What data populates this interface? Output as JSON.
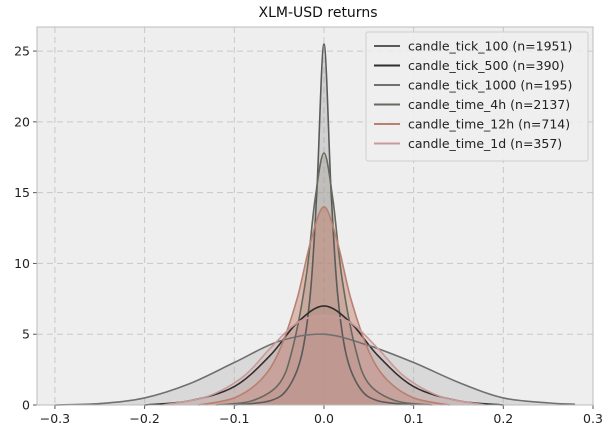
{
  "chart_data": {
    "type": "area",
    "title": "XLM-USD returns",
    "xlabel": "",
    "ylabel": "",
    "xlim": [
      -0.32,
      0.3
    ],
    "ylim": [
      0,
      26.7
    ],
    "xticks": [
      -0.3,
      -0.2,
      -0.1,
      0.0,
      0.1,
      0.2,
      0.3
    ],
    "xtick_labels": [
      "−0.3",
      "−0.2",
      "−0.1",
      "0.0",
      "0.1",
      "0.2",
      "0.3"
    ],
    "yticks": [
      0,
      5,
      10,
      15,
      20,
      25
    ],
    "ytick_labels": [
      "0",
      "5",
      "10",
      "15",
      "20",
      "25"
    ],
    "grid": true,
    "legend_position": "top-right",
    "colors": {
      "plot_bg": "#eeeeee",
      "grid": "#c8c8c8",
      "frame": "#bcbcbc"
    },
    "series": [
      {
        "name": "candle_tick_100 (n=1951)",
        "color": "#5a5a5a",
        "fill": "#9a9a9a",
        "fill_opacity": 0.35,
        "x": [
          -0.1,
          -0.06,
          -0.04,
          -0.025,
          -0.015,
          -0.008,
          0.0,
          0.008,
          0.015,
          0.025,
          0.04,
          0.06,
          0.1
        ],
        "y": [
          0.0,
          0.3,
          1.2,
          3.5,
          8.0,
          15.0,
          25.5,
          15.0,
          8.0,
          3.5,
          1.2,
          0.3,
          0.0
        ]
      },
      {
        "name": "candle_tick_500 (n=390)",
        "color": "#2e2e2e",
        "fill": "#8a8a8a",
        "fill_opacity": 0.25,
        "x": [
          -0.2,
          -0.15,
          -0.1,
          -0.06,
          -0.03,
          0.0,
          0.03,
          0.06,
          0.1,
          0.15,
          0.2
        ],
        "y": [
          0.0,
          0.3,
          1.3,
          3.5,
          5.8,
          7.0,
          5.8,
          3.5,
          1.3,
          0.3,
          0.0
        ]
      },
      {
        "name": "candle_tick_1000 (n=195)",
        "color": "#707070",
        "fill": "#a8a8a8",
        "fill_opacity": 0.3,
        "x": [
          -0.3,
          -0.25,
          -0.2,
          -0.15,
          -0.1,
          -0.05,
          0.0,
          0.05,
          0.1,
          0.15,
          0.2,
          0.25,
          0.28
        ],
        "y": [
          0.0,
          0.1,
          0.5,
          1.5,
          3.0,
          4.5,
          5.0,
          4.2,
          3.0,
          1.6,
          0.5,
          0.15,
          0.05
        ]
      },
      {
        "name": "candle_time_4h (n=2137)",
        "color": "#66695f",
        "fill": "#a09a90",
        "fill_opacity": 0.35,
        "x": [
          -0.12,
          -0.08,
          -0.05,
          -0.035,
          -0.02,
          -0.01,
          0.0,
          0.01,
          0.02,
          0.035,
          0.05,
          0.08,
          0.12
        ],
        "y": [
          0.0,
          0.3,
          1.5,
          4.0,
          9.0,
          14.5,
          17.8,
          14.5,
          9.0,
          4.0,
          1.5,
          0.3,
          0.0
        ]
      },
      {
        "name": "candle_time_12h (n=714)",
        "color": "#b7806f",
        "fill": "#c07a66",
        "fill_opacity": 0.45,
        "x": [
          -0.14,
          -0.1,
          -0.07,
          -0.05,
          -0.03,
          -0.015,
          0.0,
          0.015,
          0.03,
          0.05,
          0.07,
          0.1,
          0.14
        ],
        "y": [
          0.0,
          0.5,
          1.8,
          3.8,
          7.5,
          11.5,
          14.0,
          11.5,
          7.5,
          3.8,
          1.8,
          0.5,
          0.0
        ]
      },
      {
        "name": "candle_time_1d (n=357)",
        "color": "#c99a9a",
        "fill": "#d0a0a0",
        "fill_opacity": 0.3,
        "x": [
          -0.18,
          -0.13,
          -0.09,
          -0.06,
          -0.03,
          0.0,
          0.03,
          0.06,
          0.09,
          0.13,
          0.18
        ],
        "y": [
          0.0,
          0.6,
          2.0,
          4.0,
          5.8,
          6.3,
          5.8,
          4.0,
          2.0,
          0.6,
          0.0
        ]
      }
    ]
  }
}
